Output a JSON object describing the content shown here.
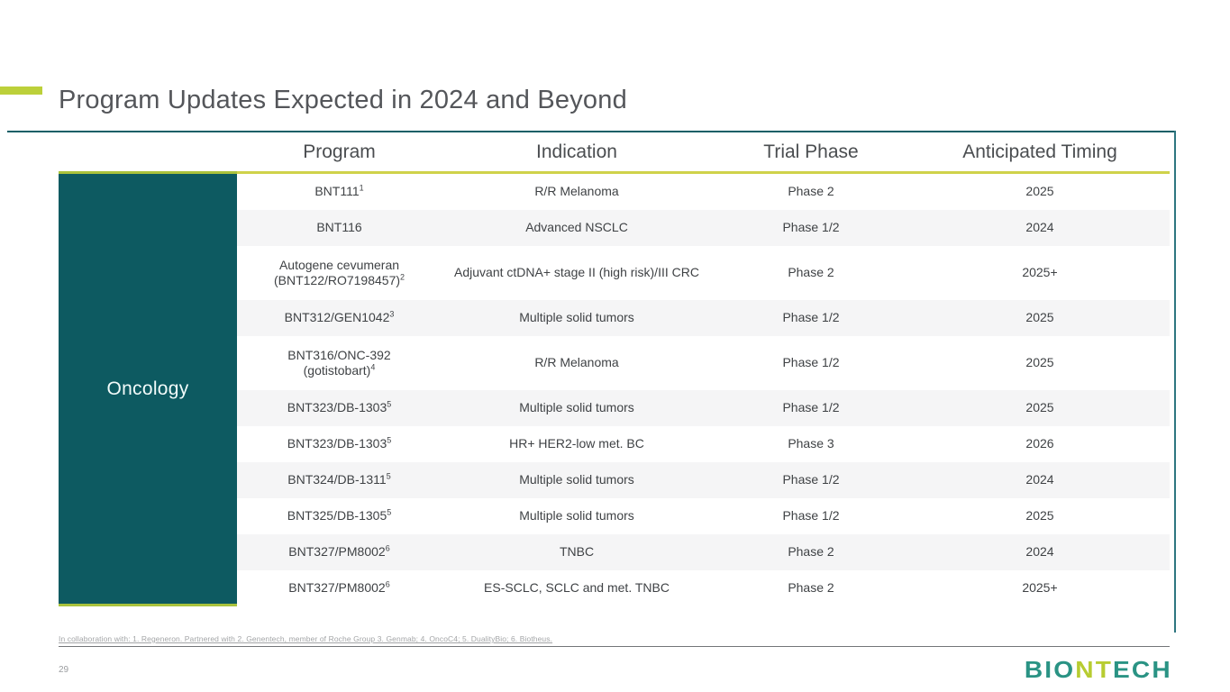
{
  "slide": {
    "title": "Program Updates Expected in 2024 and Beyond",
    "page_number": "29",
    "footnote": "In collaboration with: 1. Regeneron. Partnered with 2. Genentech, member of Roche Group 3. Genmab;  4. OncoC4; 5. DualityBio; 6. Biotheus."
  },
  "logo": {
    "part1": "BIO",
    "part2": "NT",
    "part3": "ECH"
  },
  "table": {
    "category_label": "Oncology",
    "columns": [
      "Program",
      "Indication",
      "Trial Phase",
      "Anticipated Timing"
    ],
    "rows": [
      {
        "program_lines": [
          "BNT111"
        ],
        "program_sup": "1",
        "indication": "R/R Melanoma",
        "phase": "Phase 2",
        "timing": "2025",
        "striped": false
      },
      {
        "program_lines": [
          "BNT116"
        ],
        "program_sup": "",
        "indication": "Advanced NSCLC",
        "phase": "Phase 1/2",
        "timing": "2024",
        "striped": true
      },
      {
        "program_lines": [
          "Autogene cevumeran",
          "(BNT122/RO7198457)"
        ],
        "program_sup": "2",
        "indication": "Adjuvant ctDNA+ stage II (high risk)/III CRC",
        "phase": "Phase 2",
        "timing": "2025+",
        "striped": false
      },
      {
        "program_lines": [
          "BNT312/GEN1042"
        ],
        "program_sup": "3",
        "indication": "Multiple solid tumors",
        "phase": "Phase 1/2",
        "timing": "2025",
        "striped": true
      },
      {
        "program_lines": [
          "BNT316/ONC-392",
          "(gotistobart)"
        ],
        "program_sup": "4",
        "indication": "R/R Melanoma",
        "phase": "Phase 1/2",
        "timing": "2025",
        "striped": false
      },
      {
        "program_lines": [
          "BNT323/DB-1303"
        ],
        "program_sup": "5",
        "indication": "Multiple solid tumors",
        "phase": "Phase 1/2",
        "timing": "2025",
        "striped": true
      },
      {
        "program_lines": [
          "BNT323/DB-1303"
        ],
        "program_sup": "5",
        "indication": "HR+ HER2-low met. BC",
        "phase": "Phase 3",
        "timing": "2026",
        "striped": false
      },
      {
        "program_lines": [
          "BNT324/DB-1311"
        ],
        "program_sup": "5",
        "indication": "Multiple solid tumors",
        "phase": "Phase 1/2",
        "timing": "2024",
        "striped": true
      },
      {
        "program_lines": [
          "BNT325/DB-1305"
        ],
        "program_sup": "5",
        "indication": "Multiple solid tumors",
        "phase": "Phase 1/2",
        "timing": "2025",
        "striped": false
      },
      {
        "program_lines": [
          "BNT327/PM8002"
        ],
        "program_sup": "6",
        "indication": "TNBC",
        "phase": "Phase 2",
        "timing": "2024",
        "striped": true
      },
      {
        "program_lines": [
          "BNT327/PM8002"
        ],
        "program_sup": "6",
        "indication": "ES-SCLC, SCLC and met. TNBC",
        "phase": "Phase 2",
        "timing": "2025+",
        "striped": false
      }
    ]
  },
  "colors": {
    "accent_lime": "#bcd03a",
    "header_rule_lime": "#cfd24a",
    "category_teal": "#0d5a61",
    "frame_teal": "#135f67",
    "stripe_gray": "#f5f5f6",
    "title_gray": "#54565a",
    "logo_teal": "#2a9384",
    "logo_lime": "#b7cc31"
  }
}
